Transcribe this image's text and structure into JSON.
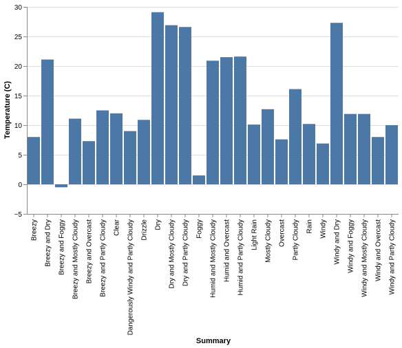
{
  "chart_data": {
    "type": "bar",
    "xlabel": "Summary",
    "ylabel": "Temperature (C)",
    "ylim": [
      -5,
      30
    ],
    "yticks": [
      -5,
      0,
      5,
      10,
      15,
      20,
      25,
      30
    ],
    "grid": true,
    "color": "#4c78a8",
    "categories": [
      "Breezy",
      "Breezy and Dry",
      "Breezy and Foggy",
      "Breezy and Mostly Cloudy",
      "Breezy and Overcast",
      "Breezy and Partly Cloudy",
      "Clear",
      "Dangerously Windy and Partly Cloudy",
      "Drizzle",
      "Dry",
      "Dry and Mostly Cloudy",
      "Dry and Partly Cloudy",
      "Foggy",
      "Humid and Mostly Cloudy",
      "Humid and Overcast",
      "Humid and Partly Cloudy",
      "Light Rain",
      "Mostly Cloudy",
      "Overcast",
      "Partly Cloudy",
      "Rain",
      "Windy",
      "Windy and Dry",
      "Windy and Foggy",
      "Windy and Mostly Cloudy",
      "Windy and Overcast",
      "Windy and Partly Cloudy"
    ],
    "values": [
      8.0,
      21.1,
      -0.5,
      11.1,
      7.3,
      12.5,
      12.0,
      9.0,
      10.9,
      29.1,
      26.9,
      26.6,
      1.5,
      20.9,
      21.5,
      21.6,
      10.1,
      12.7,
      7.6,
      16.1,
      10.2,
      6.9,
      27.3,
      11.9,
      11.9,
      8.0,
      10.0
    ]
  }
}
